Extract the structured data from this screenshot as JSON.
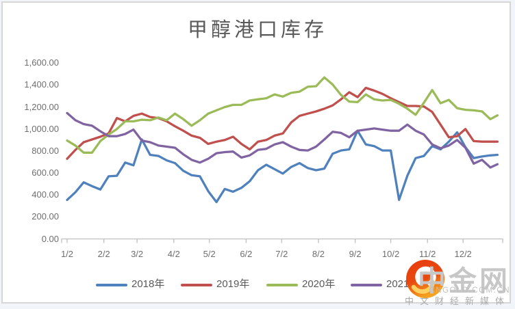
{
  "chart_data": {
    "type": "line",
    "title": "甲醇港口库存",
    "xlabel": "",
    "ylabel": "",
    "ylim": [
      0,
      1600
    ],
    "grid": false,
    "legend_position": "bottom",
    "y_tick_labels": [
      "0.00",
      "200.00",
      "400.00",
      "600.00",
      "800.00",
      "1,000.00",
      "1,200.00",
      "1,400.00",
      "1,600.00"
    ],
    "y_tick_values": [
      0,
      200,
      400,
      600,
      800,
      1000,
      1200,
      1400,
      1600
    ],
    "x_tick_labels": [
      "1/2",
      "2/2",
      "3/2",
      "4/2",
      "5/2",
      "6/2",
      "7/2",
      "8/2",
      "9/2",
      "10/2",
      "11/2",
      "12/2"
    ],
    "dates": [
      "1/2",
      "1/9",
      "1/16",
      "1/23",
      "1/30",
      "2/6",
      "2/13",
      "2/20",
      "2/27",
      "3/6",
      "3/13",
      "3/20",
      "3/27",
      "4/3",
      "4/10",
      "4/17",
      "4/24",
      "5/1",
      "5/8",
      "5/15",
      "5/22",
      "5/29",
      "6/5",
      "6/12",
      "6/19",
      "6/26",
      "7/3",
      "7/10",
      "7/17",
      "7/24",
      "7/31",
      "8/7",
      "8/14",
      "8/21",
      "8/28",
      "9/4",
      "9/11",
      "9/18",
      "9/25",
      "10/2",
      "10/9",
      "10/16",
      "10/23",
      "10/30",
      "11/6",
      "11/13",
      "11/20",
      "11/27",
      "12/4",
      "12/11",
      "12/18",
      "12/25",
      "12/31"
    ],
    "series": [
      {
        "name": "2018年",
        "color": "#4F81BD",
        "values": [
          355,
          425,
          515,
          480,
          450,
          570,
          575,
          695,
          670,
          905,
          765,
          755,
          715,
          690,
          620,
          580,
          570,
          435,
          335,
          455,
          430,
          465,
          525,
          625,
          675,
          635,
          595,
          655,
          690,
          645,
          625,
          640,
          775,
          805,
          815,
          985,
          860,
          845,
          805,
          805,
          355,
          575,
          735,
          755,
          845,
          815,
          885,
          970,
          835,
          735,
          750,
          760,
          765
        ]
      },
      {
        "name": "2019年",
        "color": "#C0504D",
        "values": [
          730,
          810,
          880,
          905,
          930,
          960,
          1100,
          1070,
          1120,
          1140,
          1110,
          1100,
          1070,
          1025,
          985,
          940,
          920,
          865,
          885,
          900,
          930,
          865,
          815,
          885,
          900,
          940,
          960,
          1060,
          1120,
          1140,
          1160,
          1185,
          1215,
          1270,
          1335,
          1290,
          1375,
          1350,
          1320,
          1280,
          1245,
          1210,
          1210,
          1205,
          1155,
          1040,
          925,
          935,
          1000,
          890,
          885,
          885,
          885
        ]
      },
      {
        "name": "2020年",
        "color": "#9BBB59",
        "values": [
          895,
          850,
          785,
          785,
          890,
          950,
          1000,
          1070,
          1070,
          1085,
          1080,
          1105,
          1080,
          1140,
          1090,
          1030,
          1080,
          1140,
          1170,
          1200,
          1220,
          1220,
          1260,
          1270,
          1280,
          1315,
          1295,
          1330,
          1340,
          1385,
          1390,
          1470,
          1405,
          1310,
          1250,
          1245,
          1315,
          1270,
          1260,
          1265,
          1230,
          1185,
          1130,
          1240,
          1355,
          1235,
          1265,
          1190,
          1175,
          1170,
          1160,
          1090,
          1125
        ]
      },
      {
        "name": "2021年",
        "color": "#8064A2",
        "values": [
          1145,
          1080,
          1045,
          1030,
          980,
          935,
          935,
          955,
          995,
          895,
          880,
          850,
          840,
          830,
          770,
          720,
          695,
          730,
          780,
          790,
          795,
          740,
          760,
          810,
          820,
          860,
          880,
          840,
          810,
          805,
          840,
          905,
          975,
          965,
          925,
          985,
          995,
          1005,
          995,
          985,
          985,
          1040,
          985,
          950,
          860,
          825,
          850,
          900,
          830,
          685,
          720,
          650,
          680
        ]
      }
    ]
  },
  "watermark": {
    "brand": "中金网",
    "domain": "CNGOLD.COM.CN",
    "tagline": "中文财经新媒体"
  }
}
